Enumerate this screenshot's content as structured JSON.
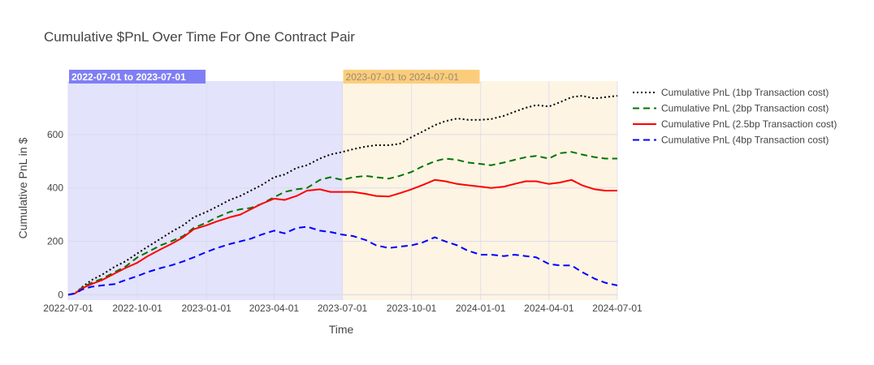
{
  "chart_data": {
    "type": "line",
    "title": "Cumulative $PnL Over Time For One Contract Pair",
    "xlabel": "Time",
    "ylabel": "Cumulative PnL in $",
    "x_range": [
      "2022-07-01",
      "2024-07-01"
    ],
    "y_range": [
      -20,
      800
    ],
    "grid": true,
    "legend_position": "right",
    "x_ticks": [
      "2022-07-01",
      "2022-10-01",
      "2023-01-01",
      "2023-04-01",
      "2023-07-01",
      "2023-10-01",
      "2024-01-01",
      "2024-04-01",
      "2024-07-01"
    ],
    "y_ticks": [
      0,
      200,
      400,
      600
    ],
    "regions": [
      {
        "label": "2022-07-01 to 2023-07-01",
        "start": "2022-07-01",
        "end": "2023-07-01",
        "fill": "#e3e3fb",
        "label_bg": "#7f7ff5",
        "label_color": "#ffffff"
      },
      {
        "label": "2023-07-01 to 2024-07-01",
        "start": "2023-07-01",
        "end": "2024-07-01",
        "fill": "#fdf4e3",
        "label_bg": "#fbcd7b",
        "label_color": "#9a8a74"
      }
    ],
    "series": [
      {
        "name": "Cumulative PnL (1bp Transaction cost)",
        "color": "#000000",
        "dash": "dot",
        "x": [
          "2022-07-01",
          "2022-07-10",
          "2022-07-20",
          "2022-08-01",
          "2022-08-15",
          "2022-09-01",
          "2022-09-15",
          "2022-10-01",
          "2022-10-15",
          "2022-11-01",
          "2022-11-15",
          "2022-12-01",
          "2022-12-15",
          "2023-01-01",
          "2023-01-15",
          "2023-02-01",
          "2023-02-15",
          "2023-03-01",
          "2023-03-15",
          "2023-04-01",
          "2023-04-15",
          "2023-05-01",
          "2023-05-15",
          "2023-06-01",
          "2023-06-15",
          "2023-07-01",
          "2023-07-15",
          "2023-08-01",
          "2023-08-15",
          "2023-09-01",
          "2023-09-15",
          "2023-10-01",
          "2023-10-15",
          "2023-11-01",
          "2023-11-15",
          "2023-12-01",
          "2023-12-15",
          "2024-01-01",
          "2024-01-15",
          "2024-02-01",
          "2024-02-15",
          "2024-03-01",
          "2024-03-15",
          "2024-04-01",
          "2024-04-15",
          "2024-05-01",
          "2024-05-15",
          "2024-06-01",
          "2024-06-15",
          "2024-07-01"
        ],
        "y": [
          0,
          5,
          30,
          55,
          75,
          105,
          125,
          155,
          180,
          210,
          235,
          260,
          290,
          310,
          330,
          355,
          370,
          390,
          410,
          440,
          450,
          475,
          485,
          510,
          525,
          535,
          545,
          555,
          560,
          560,
          565,
          590,
          610,
          635,
          650,
          660,
          655,
          655,
          658,
          670,
          685,
          700,
          710,
          705,
          720,
          740,
          745,
          735,
          740,
          745
        ]
      },
      {
        "name": "Cumulative PnL (2bp Transaction cost)",
        "color": "#007500",
        "dash": "dash",
        "x": [
          "2022-07-01",
          "2022-07-10",
          "2022-07-20",
          "2022-08-01",
          "2022-08-15",
          "2022-09-01",
          "2022-09-15",
          "2022-10-01",
          "2022-10-15",
          "2022-11-01",
          "2022-11-15",
          "2022-12-01",
          "2022-12-15",
          "2023-01-01",
          "2023-01-15",
          "2023-02-01",
          "2023-02-15",
          "2023-03-01",
          "2023-03-15",
          "2023-04-01",
          "2023-04-15",
          "2023-05-01",
          "2023-05-15",
          "2023-06-01",
          "2023-06-15",
          "2023-07-01",
          "2023-07-15",
          "2023-08-01",
          "2023-08-15",
          "2023-09-01",
          "2023-09-15",
          "2023-10-01",
          "2023-10-15",
          "2023-11-01",
          "2023-11-15",
          "2023-12-01",
          "2023-12-15",
          "2024-01-01",
          "2024-01-15",
          "2024-02-01",
          "2024-02-15",
          "2024-03-01",
          "2024-03-15",
          "2024-04-01",
          "2024-04-15",
          "2024-05-01",
          "2024-05-15",
          "2024-06-01",
          "2024-06-15",
          "2024-07-01"
        ],
        "y": [
          0,
          5,
          28,
          45,
          60,
          85,
          105,
          140,
          160,
          185,
          200,
          220,
          250,
          270,
          290,
          310,
          320,
          325,
          340,
          365,
          385,
          395,
          400,
          430,
          440,
          430,
          440,
          445,
          440,
          435,
          445,
          460,
          480,
          500,
          510,
          505,
          495,
          490,
          485,
          495,
          505,
          515,
          520,
          510,
          530,
          535,
          525,
          515,
          510,
          510
        ]
      },
      {
        "name": "Cumulative PnL (2.5bp Transaction cost)",
        "color": "#ff0000",
        "dash": "solid",
        "x": [
          "2022-07-01",
          "2022-07-10",
          "2022-07-20",
          "2022-08-01",
          "2022-08-15",
          "2022-09-01",
          "2022-09-15",
          "2022-10-01",
          "2022-10-15",
          "2022-11-01",
          "2022-11-15",
          "2022-12-01",
          "2022-12-15",
          "2023-01-01",
          "2023-01-15",
          "2023-02-01",
          "2023-02-15",
          "2023-03-01",
          "2023-03-15",
          "2023-04-01",
          "2023-04-15",
          "2023-05-01",
          "2023-05-15",
          "2023-06-01",
          "2023-06-15",
          "2023-07-01",
          "2023-07-15",
          "2023-08-01",
          "2023-08-15",
          "2023-09-01",
          "2023-09-15",
          "2023-10-01",
          "2023-10-15",
          "2023-11-01",
          "2023-11-15",
          "2023-12-01",
          "2023-12-15",
          "2024-01-01",
          "2024-01-15",
          "2024-02-01",
          "2024-02-15",
          "2024-03-01",
          "2024-03-15",
          "2024-04-01",
          "2024-04-15",
          "2024-05-01",
          "2024-05-15",
          "2024-06-01",
          "2024-06-15",
          "2024-07-01"
        ],
        "y": [
          0,
          5,
          25,
          40,
          55,
          80,
          100,
          120,
          145,
          170,
          190,
          215,
          245,
          260,
          275,
          290,
          300,
          320,
          340,
          360,
          355,
          370,
          390,
          395,
          385,
          385,
          385,
          378,
          370,
          368,
          380,
          395,
          410,
          430,
          425,
          415,
          410,
          405,
          400,
          405,
          415,
          425,
          425,
          415,
          420,
          430,
          410,
          395,
          390,
          390
        ]
      },
      {
        "name": "Cumulative PnL (4bp Transaction cost)",
        "color": "#0000ff",
        "dash": "dash",
        "x": [
          "2022-07-01",
          "2022-07-10",
          "2022-07-20",
          "2022-08-01",
          "2022-08-15",
          "2022-09-01",
          "2022-09-15",
          "2022-10-01",
          "2022-10-15",
          "2022-11-01",
          "2022-11-15",
          "2022-12-01",
          "2022-12-15",
          "2023-01-01",
          "2023-01-15",
          "2023-02-01",
          "2023-02-15",
          "2023-03-01",
          "2023-03-15",
          "2023-04-01",
          "2023-04-15",
          "2023-05-01",
          "2023-05-15",
          "2023-06-01",
          "2023-06-15",
          "2023-07-01",
          "2023-07-15",
          "2023-08-01",
          "2023-08-15",
          "2023-09-01",
          "2023-09-15",
          "2023-10-01",
          "2023-10-15",
          "2023-11-01",
          "2023-11-15",
          "2023-12-01",
          "2023-12-15",
          "2024-01-01",
          "2024-01-15",
          "2024-02-01",
          "2024-02-15",
          "2024-03-01",
          "2024-03-15",
          "2024-04-01",
          "2024-04-15",
          "2024-05-01",
          "2024-05-15",
          "2024-06-01",
          "2024-06-15",
          "2024-07-01"
        ],
        "y": [
          0,
          5,
          20,
          30,
          35,
          40,
          55,
          70,
          85,
          100,
          110,
          125,
          140,
          160,
          175,
          190,
          200,
          210,
          225,
          240,
          230,
          250,
          255,
          240,
          235,
          225,
          220,
          205,
          185,
          175,
          180,
          185,
          195,
          215,
          200,
          185,
          165,
          150,
          150,
          145,
          150,
          145,
          140,
          115,
          110,
          110,
          85,
          60,
          45,
          35
        ]
      }
    ]
  }
}
